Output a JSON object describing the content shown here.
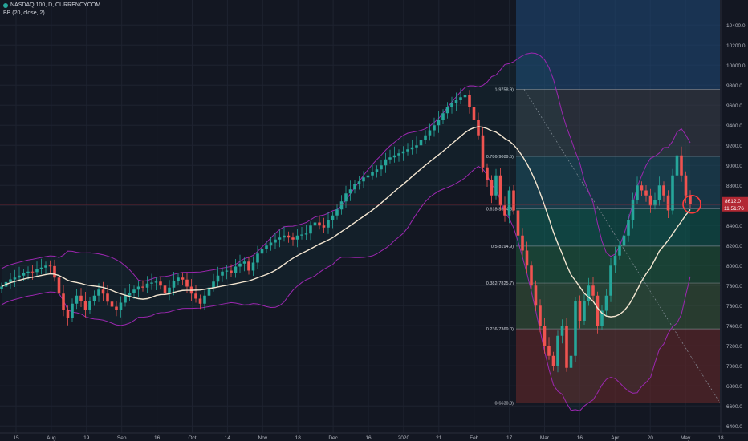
{
  "legend": {
    "title": "NASDAQ 100, D, CURRENCYCOM",
    "indicator": "BB (20, close, 2)"
  },
  "price_tags": {
    "current": "8612.0",
    "countdown": "11:51:76"
  },
  "colors": {
    "background": "#131722",
    "grid": "#1e2330",
    "up": "#26a69a",
    "down": "#ef5350",
    "bands": "#9c27b0",
    "basis": "#f3e5d0",
    "price_line": "#b22833",
    "highlight": "#ff3b3b"
  },
  "chart_data": {
    "type": "candlestick",
    "title": "NASDAQ 100, D, CURRENCYCOM",
    "indicator": "BB (20, close, 2)",
    "x_ticks": [
      "15",
      "Aug",
      "19",
      "Sep",
      "16",
      "Oct",
      "14",
      "Nov",
      "18",
      "Dec",
      "16",
      "2020",
      "21",
      "Feb",
      "17",
      "Mar",
      "16",
      "Apr",
      "20",
      "May",
      "18"
    ],
    "y_ticks": [
      6400,
      6600,
      6800,
      7000,
      7200,
      7400,
      7600,
      7800,
      8000,
      8200,
      8400,
      8600,
      8800,
      9000,
      9200,
      9400,
      9600,
      9800,
      10000,
      10200,
      10400
    ],
    "ylim": [
      6330,
      10650
    ],
    "current_price": 8612.0,
    "fibonacci": {
      "levels": [
        {
          "label": "1(9758.9)",
          "value": 9758.9,
          "fill": "#3a3f4a"
        },
        {
          "label": "0.786(9089.5)",
          "value": 9089.5,
          "fill": "#1d4e63"
        },
        {
          "label": "0.618(8564.5)",
          "value": 8564.5,
          "fill": "#0d5c52"
        },
        {
          "label": "0.5(8194.9)",
          "value": 8194.9,
          "fill": "#1f5a3a"
        },
        {
          "label": "0.382(7825.7)",
          "value": 7825.7,
          "fill": "#3a5a3a"
        },
        {
          "label": "0.236(7369.0)",
          "value": 7369.0,
          "fill": "#6b2a2a"
        },
        {
          "label": "0(6630.8)",
          "value": 6630.8,
          "fill": "#6b2a2a"
        }
      ],
      "upper_zone_fill": "#1f4a7a"
    },
    "series": [
      {
        "name": "Close",
        "values": [
          7790,
          7835,
          7862,
          7880,
          7900,
          7925,
          7940,
          7935,
          7965,
          7980,
          8000,
          7995,
          7880,
          7720,
          7560,
          7480,
          7620,
          7700,
          7650,
          7560,
          7650,
          7700,
          7760,
          7720,
          7640,
          7590,
          7560,
          7630,
          7700,
          7730,
          7760,
          7790,
          7780,
          7820,
          7830,
          7840,
          7800,
          7720,
          7780,
          7850,
          7880,
          7860,
          7790,
          7720,
          7670,
          7620,
          7700,
          7780,
          7840,
          7900,
          7940,
          7950,
          7930,
          7990,
          8020,
          8040,
          7950,
          8030,
          8120,
          8170,
          8200,
          8230,
          8260,
          8280,
          8300,
          8280,
          8260,
          8300,
          8310,
          8320,
          8400,
          8430,
          8400,
          8380,
          8450,
          8500,
          8560,
          8640,
          8720,
          8760,
          8810,
          8840,
          8880,
          8900,
          8930,
          8960,
          9000,
          9060,
          9080,
          9100,
          9120,
          9140,
          9160,
          9180,
          9200,
          9250,
          9300,
          9350,
          9400,
          9450,
          9520,
          9580,
          9620,
          9650,
          9680,
          9700,
          9580,
          9450,
          9300,
          8980,
          8850,
          8700,
          8900,
          8600,
          8500,
          8750,
          8550,
          8300,
          8150,
          8000,
          7800,
          7600,
          7400,
          7200,
          7100,
          7000,
          7300,
          7400,
          6980,
          7100,
          7650,
          7450,
          7650,
          7800,
          7700,
          7400,
          7550,
          7700,
          8000,
          8100,
          8200,
          8300,
          8450,
          8650,
          8800,
          8750,
          8700,
          8600,
          8650,
          8800,
          8700,
          8550,
          8900,
          9100,
          8900,
          8700,
          8612
        ]
      }
    ],
    "bollinger": {
      "period": 20,
      "source": "close",
      "stddev": 2,
      "upper_range": [
        8060,
        10170
      ],
      "lower_range": [
        6630,
        8380
      ]
    }
  }
}
